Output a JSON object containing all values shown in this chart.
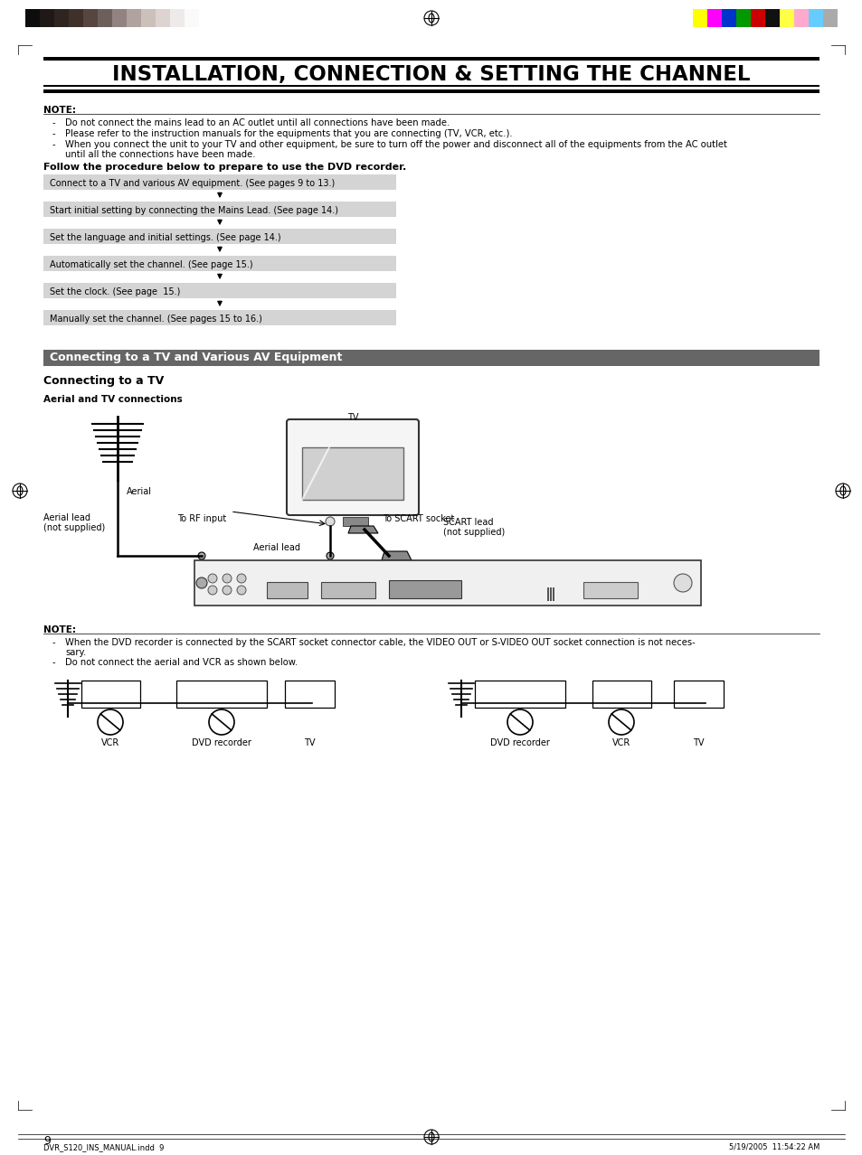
{
  "title": "INSTALLATION, CONNECTION & SETTING THE CHANNEL",
  "bg_color": "#ffffff",
  "note_label": "NOTE:",
  "note_lines": [
    "Do not connect the mains lead to an AC outlet until all connections have been made.",
    "Please refer to the instruction manuals for the equipments that you are connecting (TV, VCR, etc.).",
    "When you connect the unit to your TV and other equipment, be sure to turn off the power and disconnect all of the equipments from the AC outlet",
    "until all the connections have been made."
  ],
  "follow_text": "Follow the procedure below to prepare to use the DVD recorder.",
  "steps": [
    "Connect to a TV and various AV equipment. (See pages 9 to 13.)",
    "Start initial setting by connecting the Mains Lead. (See page 14.)",
    "Set the language and initial settings. (See page 14.)",
    "Automatically set the channel. (See page 15.)",
    "Set the clock. (See page  15.)",
    "Manually set the channel. (See pages 15 to 16.)"
  ],
  "section2_title": "Connecting to a TV and Various AV Equipment",
  "subsection_title": "Connecting to a TV",
  "subsection2_title": "Aerial and TV connections",
  "label_aerial": "Aerial",
  "label_aerial_lead": "Aerial lead",
  "label_aerial_lead_ns": "(not supplied)",
  "label_aerial_lead2": "Aerial lead",
  "label_tv": "TV",
  "label_rf": "To RF input",
  "label_scart_socket": "To SCART socket",
  "label_scart_lead": "SCART lead",
  "label_scart_lead_ns": "(not supplied)",
  "note2_label": "NOTE:",
  "note2_line1": "When the DVD recorder is connected by the SCART socket connector cable, the VIDEO OUT or S-VIDEO OUT socket connection is not neces-",
  "note2_line1b": "sary.",
  "note2_line2": "Do not connect the aerial and VCR as shown below.",
  "diagram2_labels": [
    "VCR",
    "DVD recorder",
    "TV",
    "DVD recorder",
    "VCR",
    "TV"
  ],
  "page_number": "9",
  "footer_left": "DVR_S120_INS_MANUAL.indd  9",
  "footer_right": "5/19/2005  11:54:22 AM",
  "color_bars_left": [
    "#0d0d0d",
    "#1e1916",
    "#2e2521",
    "#3f302a",
    "#574640",
    "#6d605b",
    "#928280",
    "#b0a29e",
    "#ccc0bb",
    "#ddd4d1",
    "#eeeae9",
    "#fafafa"
  ],
  "color_bars_right": [
    "#ffff00",
    "#ff00ff",
    "#0033cc",
    "#009900",
    "#cc0000",
    "#111111",
    "#ffff44",
    "#ffaacc",
    "#66ccff",
    "#aaaaaa"
  ],
  "step_box_color": "#d4d4d4",
  "section_bar_color": "#666666"
}
